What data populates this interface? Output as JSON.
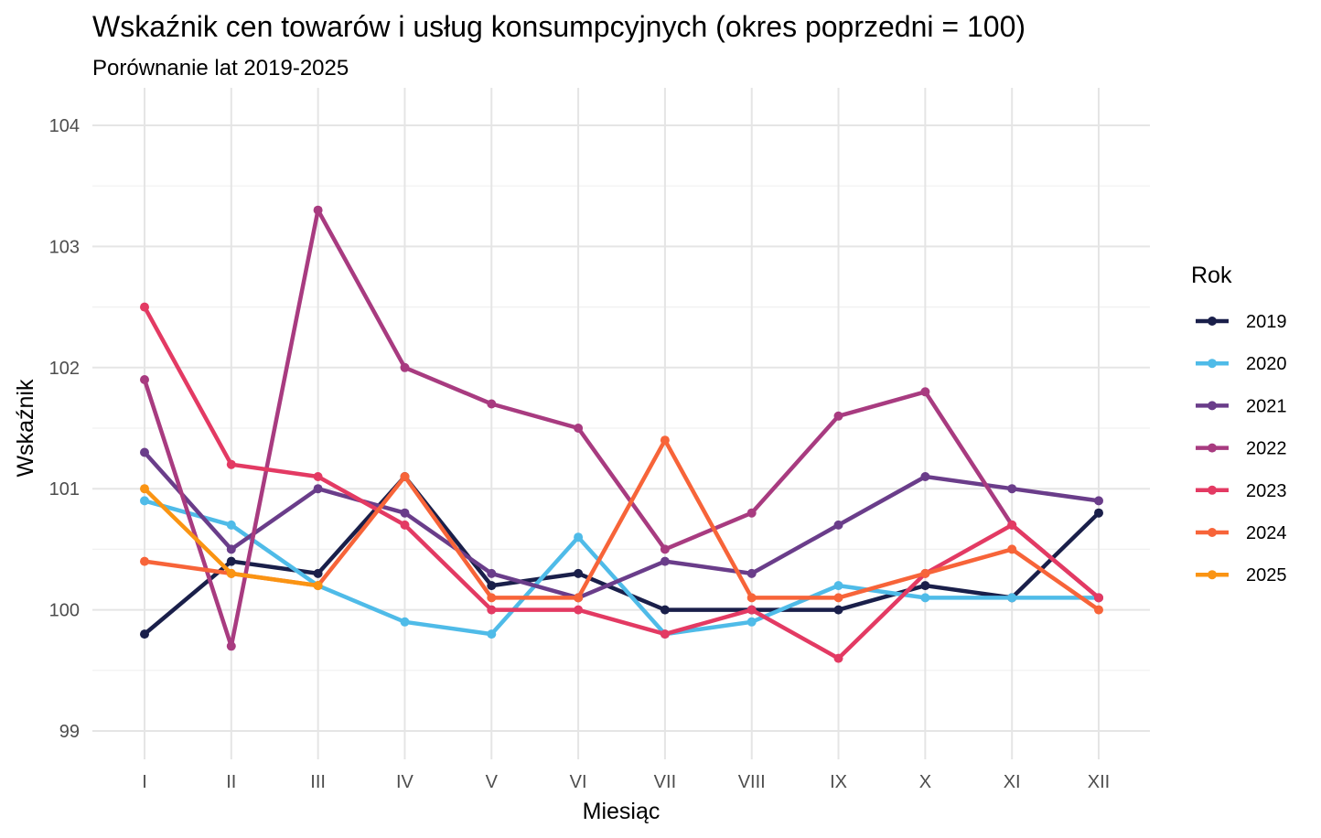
{
  "chart_data": {
    "type": "line",
    "title": "Wskaźnik cen towarów i usług konsumpcyjnych (okres poprzedni = 100)",
    "subtitle": "Porównanie lat 2019-2025",
    "xlabel": "Miesiąc",
    "ylabel": "Wskaźnik",
    "categories": [
      "I",
      "II",
      "III",
      "IV",
      "V",
      "VI",
      "VII",
      "VIII",
      "IX",
      "X",
      "XI",
      "XII"
    ],
    "ylim": [
      98.9,
      104.2
    ],
    "yticks": [
      99,
      100,
      101,
      102,
      103,
      104
    ],
    "grid": true,
    "legend": {
      "title": "Rok",
      "position": "right"
    },
    "series": [
      {
        "name": "2019",
        "color": "#1a1f4a",
        "values": [
          99.8,
          100.4,
          100.3,
          101.1,
          100.2,
          100.3,
          100.0,
          100.0,
          100.0,
          100.2,
          100.1,
          100.8
        ]
      },
      {
        "name": "2020",
        "color": "#4fbbe8",
        "values": [
          100.9,
          100.7,
          100.2,
          99.9,
          99.8,
          100.6,
          99.8,
          99.9,
          100.2,
          100.1,
          100.1,
          100.1
        ]
      },
      {
        "name": "2021",
        "color": "#6a3d8a",
        "values": [
          101.3,
          100.5,
          101.0,
          100.8,
          100.3,
          100.1,
          100.4,
          100.3,
          100.7,
          101.1,
          101.0,
          100.9
        ]
      },
      {
        "name": "2022",
        "color": "#a83b80",
        "values": [
          101.9,
          99.7,
          103.3,
          102.0,
          101.7,
          101.5,
          100.5,
          100.8,
          101.6,
          101.8,
          100.7,
          100.1
        ]
      },
      {
        "name": "2023",
        "color": "#e33a63",
        "values": [
          102.5,
          101.2,
          101.1,
          100.7,
          100.0,
          100.0,
          99.8,
          100.0,
          99.6,
          100.3,
          100.7,
          100.1
        ]
      },
      {
        "name": "2024",
        "color": "#f76439",
        "values": [
          100.4,
          100.3,
          100.2,
          101.1,
          100.1,
          100.1,
          101.4,
          100.1,
          100.1,
          100.3,
          100.5,
          100.0
        ]
      },
      {
        "name": "2025",
        "color": "#fa9413",
        "values": [
          101.0,
          100.3,
          100.2,
          null,
          null,
          null,
          null,
          null,
          null,
          null,
          null,
          null
        ]
      }
    ]
  }
}
